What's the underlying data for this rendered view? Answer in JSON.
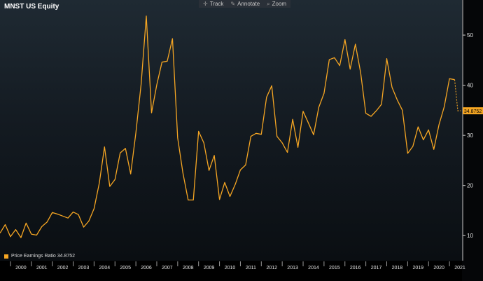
{
  "chart": {
    "title": "MNST US Equity",
    "toolbar": [
      {
        "label": "Track",
        "icon": "crosshair-icon"
      },
      {
        "label": "Annotate",
        "icon": "pencil-icon"
      },
      {
        "label": "Zoom",
        "icon": "magnifier-icon"
      }
    ],
    "legend": {
      "label": "Price Earnings Ratio 34.8752"
    }
  },
  "chart_data": {
    "type": "line",
    "series": [
      {
        "name": "Price Earnings Ratio",
        "color": "#f6a623"
      }
    ],
    "x_start_year": 1999.5,
    "x_step": 0.25,
    "values": [
      10.5,
      12.2,
      9.8,
      11.2,
      9.6,
      12.5,
      10.3,
      10.1,
      11.8,
      12.7,
      14.6,
      14.3,
      13.9,
      13.5,
      14.7,
      14.2,
      11.7,
      12.9,
      15.4,
      20.5,
      27.7,
      19.8,
      21.2,
      26.5,
      27.4,
      22.3,
      30.5,
      40.2,
      53.8,
      34.5,
      40.1,
      44.6,
      44.8,
      49.3,
      29.5,
      22.5,
      17.1,
      17.1,
      30.8,
      28.5,
      23.0,
      26.0,
      17.2,
      20.6,
      17.8,
      20.2,
      23.1,
      24.1,
      29.8,
      30.4,
      30.2,
      37.6,
      39.9,
      29.8,
      28.5,
      26.6,
      33.2,
      27.6,
      34.8,
      32.5,
      30.1,
      35.6,
      38.4,
      45.1,
      45.5,
      43.9,
      49.1,
      43.2,
      48.2,
      42.5,
      34.4,
      33.8,
      34.9,
      36.2,
      45.3,
      39.6,
      37.1,
      35.0,
      26.4,
      27.8,
      31.7,
      29.1,
      31.1,
      27.2,
      32.1,
      35.7,
      41.3,
      41.1
    ],
    "projection": [
      41.1,
      34.9,
      34.9
    ],
    "last_value_label": "34.8752",
    "x_ticks": [
      "2000",
      "2001",
      "2002",
      "2003",
      "2004",
      "2005",
      "2006",
      "2007",
      "2008",
      "2009",
      "2010",
      "2011",
      "2012",
      "2013",
      "2014",
      "2015",
      "2016",
      "2017",
      "2018",
      "2019",
      "2020",
      "2021"
    ],
    "y_ticks": [
      10,
      20,
      30,
      40,
      50
    ],
    "ylim": [
      5,
      57
    ],
    "xlim": [
      1999.5,
      2021.6
    ]
  }
}
